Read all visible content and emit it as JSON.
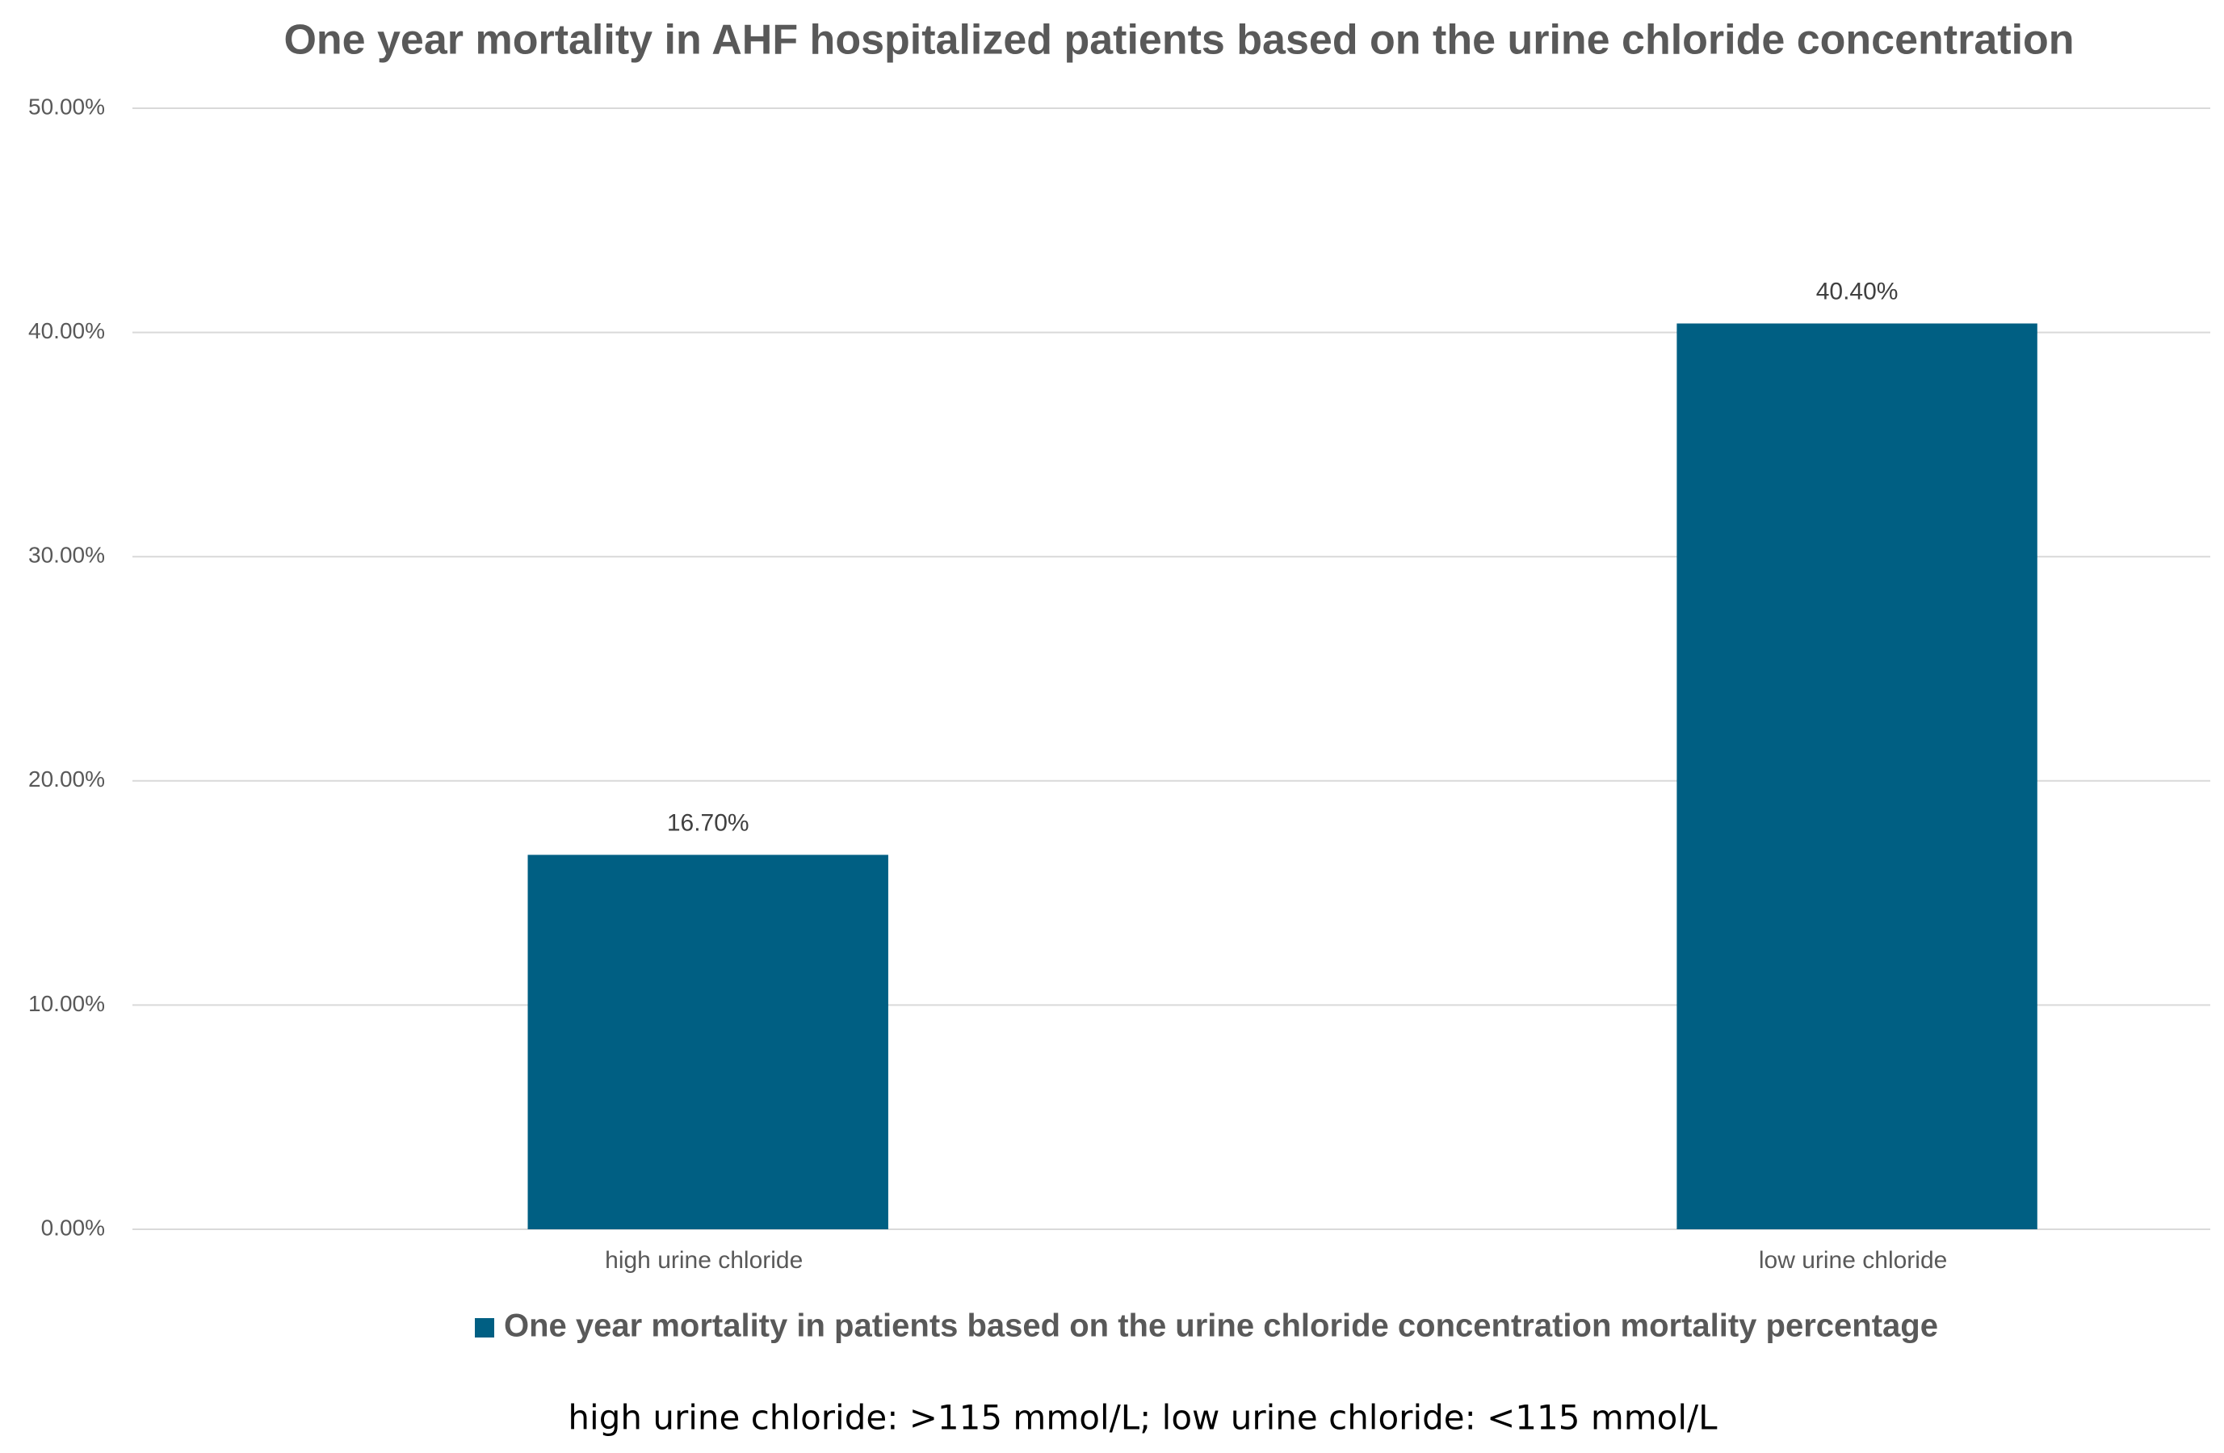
{
  "chart_data": {
    "type": "bar",
    "title": "One year mortality in AHF hospitalized patients based on the urine chloride concentration",
    "categories": [
      "high urine chloride",
      "low urine chloride"
    ],
    "series": [
      {
        "name": "One year mortality in patients based on the urine chloride concentration mortality percentage",
        "color": "#005f83",
        "values": [
          16.7,
          40.4
        ],
        "value_labels": [
          "16.70%",
          "40.40%"
        ]
      }
    ],
    "ylim": [
      0,
      50
    ],
    "yticks": [
      {
        "value": 0,
        "label": "0.00%"
      },
      {
        "value": 10,
        "label": "10.00%"
      },
      {
        "value": 20,
        "label": "20.00%"
      },
      {
        "value": 30,
        "label": "30.00%"
      },
      {
        "value": 40,
        "label": "40.00%"
      },
      {
        "value": 50,
        "label": "50.00%"
      }
    ],
    "grid": true,
    "legend": "bottom",
    "note": "high urine chloride: >115 mmol/L; low urine chloride: <115 mmol/L"
  }
}
